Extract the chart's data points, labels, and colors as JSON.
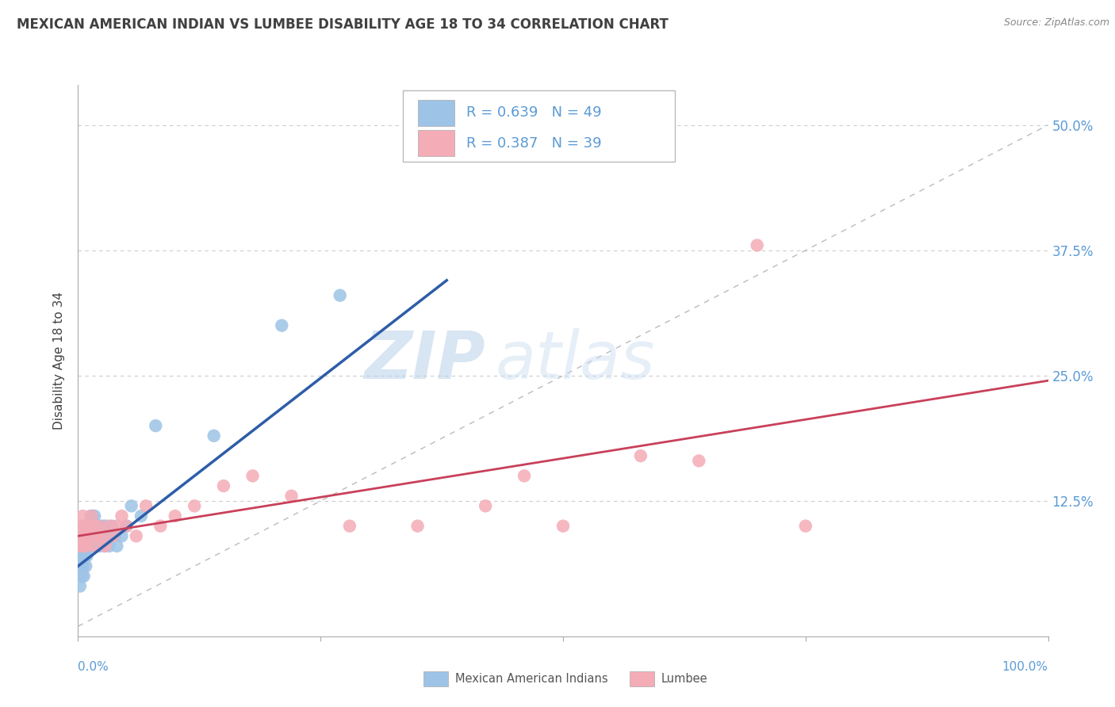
{
  "title": "MEXICAN AMERICAN INDIAN VS LUMBEE DISABILITY AGE 18 TO 34 CORRELATION CHART",
  "source": "Source: ZipAtlas.com",
  "ylabel": "Disability Age 18 to 34",
  "xlim": [
    0.0,
    1.0
  ],
  "ylim": [
    -0.01,
    0.54
  ],
  "yticks": [
    0.0,
    0.125,
    0.25,
    0.375,
    0.5
  ],
  "ytick_labels": [
    "",
    "12.5%",
    "25.0%",
    "37.5%",
    "50.0%"
  ],
  "legend_r1": "R = 0.639",
  "legend_n1": "N = 49",
  "legend_r2": "R = 0.387",
  "legend_n2": "N = 39",
  "blue_color": "#9DC3E6",
  "pink_color": "#F4ACB7",
  "blue_line_color": "#2E5DA8",
  "pink_line_color": "#C9405A",
  "watermark_zip": "ZIP",
  "watermark_atlas": "atlas",
  "background_color": "#FFFFFF",
  "grid_color": "#CCCCCC",
  "title_color": "#404040",
  "axis_label_color": "#5B9BD5",
  "ylabel_color": "#404040",
  "blue_scatter_x": [
    0.002,
    0.003,
    0.004,
    0.004,
    0.005,
    0.005,
    0.006,
    0.006,
    0.007,
    0.007,
    0.008,
    0.008,
    0.009,
    0.009,
    0.01,
    0.01,
    0.011,
    0.012,
    0.012,
    0.013,
    0.013,
    0.014,
    0.015,
    0.015,
    0.016,
    0.017,
    0.018,
    0.019,
    0.02,
    0.021,
    0.022,
    0.023,
    0.025,
    0.026,
    0.027,
    0.028,
    0.03,
    0.032,
    0.035,
    0.038,
    0.04,
    0.045,
    0.05,
    0.055,
    0.065,
    0.08,
    0.14,
    0.21,
    0.27
  ],
  "blue_scatter_y": [
    0.04,
    0.06,
    0.05,
    0.07,
    0.06,
    0.08,
    0.05,
    0.09,
    0.07,
    0.1,
    0.06,
    0.08,
    0.07,
    0.09,
    0.08,
    0.1,
    0.09,
    0.1,
    0.08,
    0.09,
    0.11,
    0.1,
    0.08,
    0.11,
    0.09,
    0.11,
    0.1,
    0.08,
    0.09,
    0.1,
    0.08,
    0.09,
    0.1,
    0.09,
    0.08,
    0.1,
    0.09,
    0.08,
    0.1,
    0.09,
    0.08,
    0.09,
    0.1,
    0.12,
    0.11,
    0.2,
    0.19,
    0.3,
    0.33
  ],
  "pink_scatter_x": [
    0.002,
    0.003,
    0.004,
    0.005,
    0.006,
    0.007,
    0.008,
    0.009,
    0.01,
    0.012,
    0.014,
    0.016,
    0.018,
    0.02,
    0.022,
    0.025,
    0.028,
    0.032,
    0.036,
    0.04,
    0.045,
    0.05,
    0.06,
    0.07,
    0.085,
    0.1,
    0.12,
    0.15,
    0.18,
    0.22,
    0.28,
    0.35,
    0.42,
    0.5,
    0.58,
    0.64,
    0.7,
    0.75,
    0.46
  ],
  "pink_scatter_y": [
    0.08,
    0.1,
    0.09,
    0.11,
    0.08,
    0.1,
    0.09,
    0.08,
    0.1,
    0.09,
    0.11,
    0.1,
    0.08,
    0.09,
    0.1,
    0.09,
    0.08,
    0.1,
    0.09,
    0.1,
    0.11,
    0.1,
    0.09,
    0.12,
    0.1,
    0.11,
    0.12,
    0.14,
    0.15,
    0.13,
    0.1,
    0.1,
    0.12,
    0.1,
    0.17,
    0.165,
    0.38,
    0.1,
    0.15
  ],
  "blue_line_x": [
    0.0,
    0.38
  ],
  "blue_line_y": [
    0.06,
    0.345
  ],
  "pink_line_x": [
    0.0,
    1.0
  ],
  "pink_line_y": [
    0.09,
    0.245
  ],
  "ref_line_x": [
    0.0,
    1.0
  ],
  "ref_line_y": [
    0.0,
    0.5
  ]
}
